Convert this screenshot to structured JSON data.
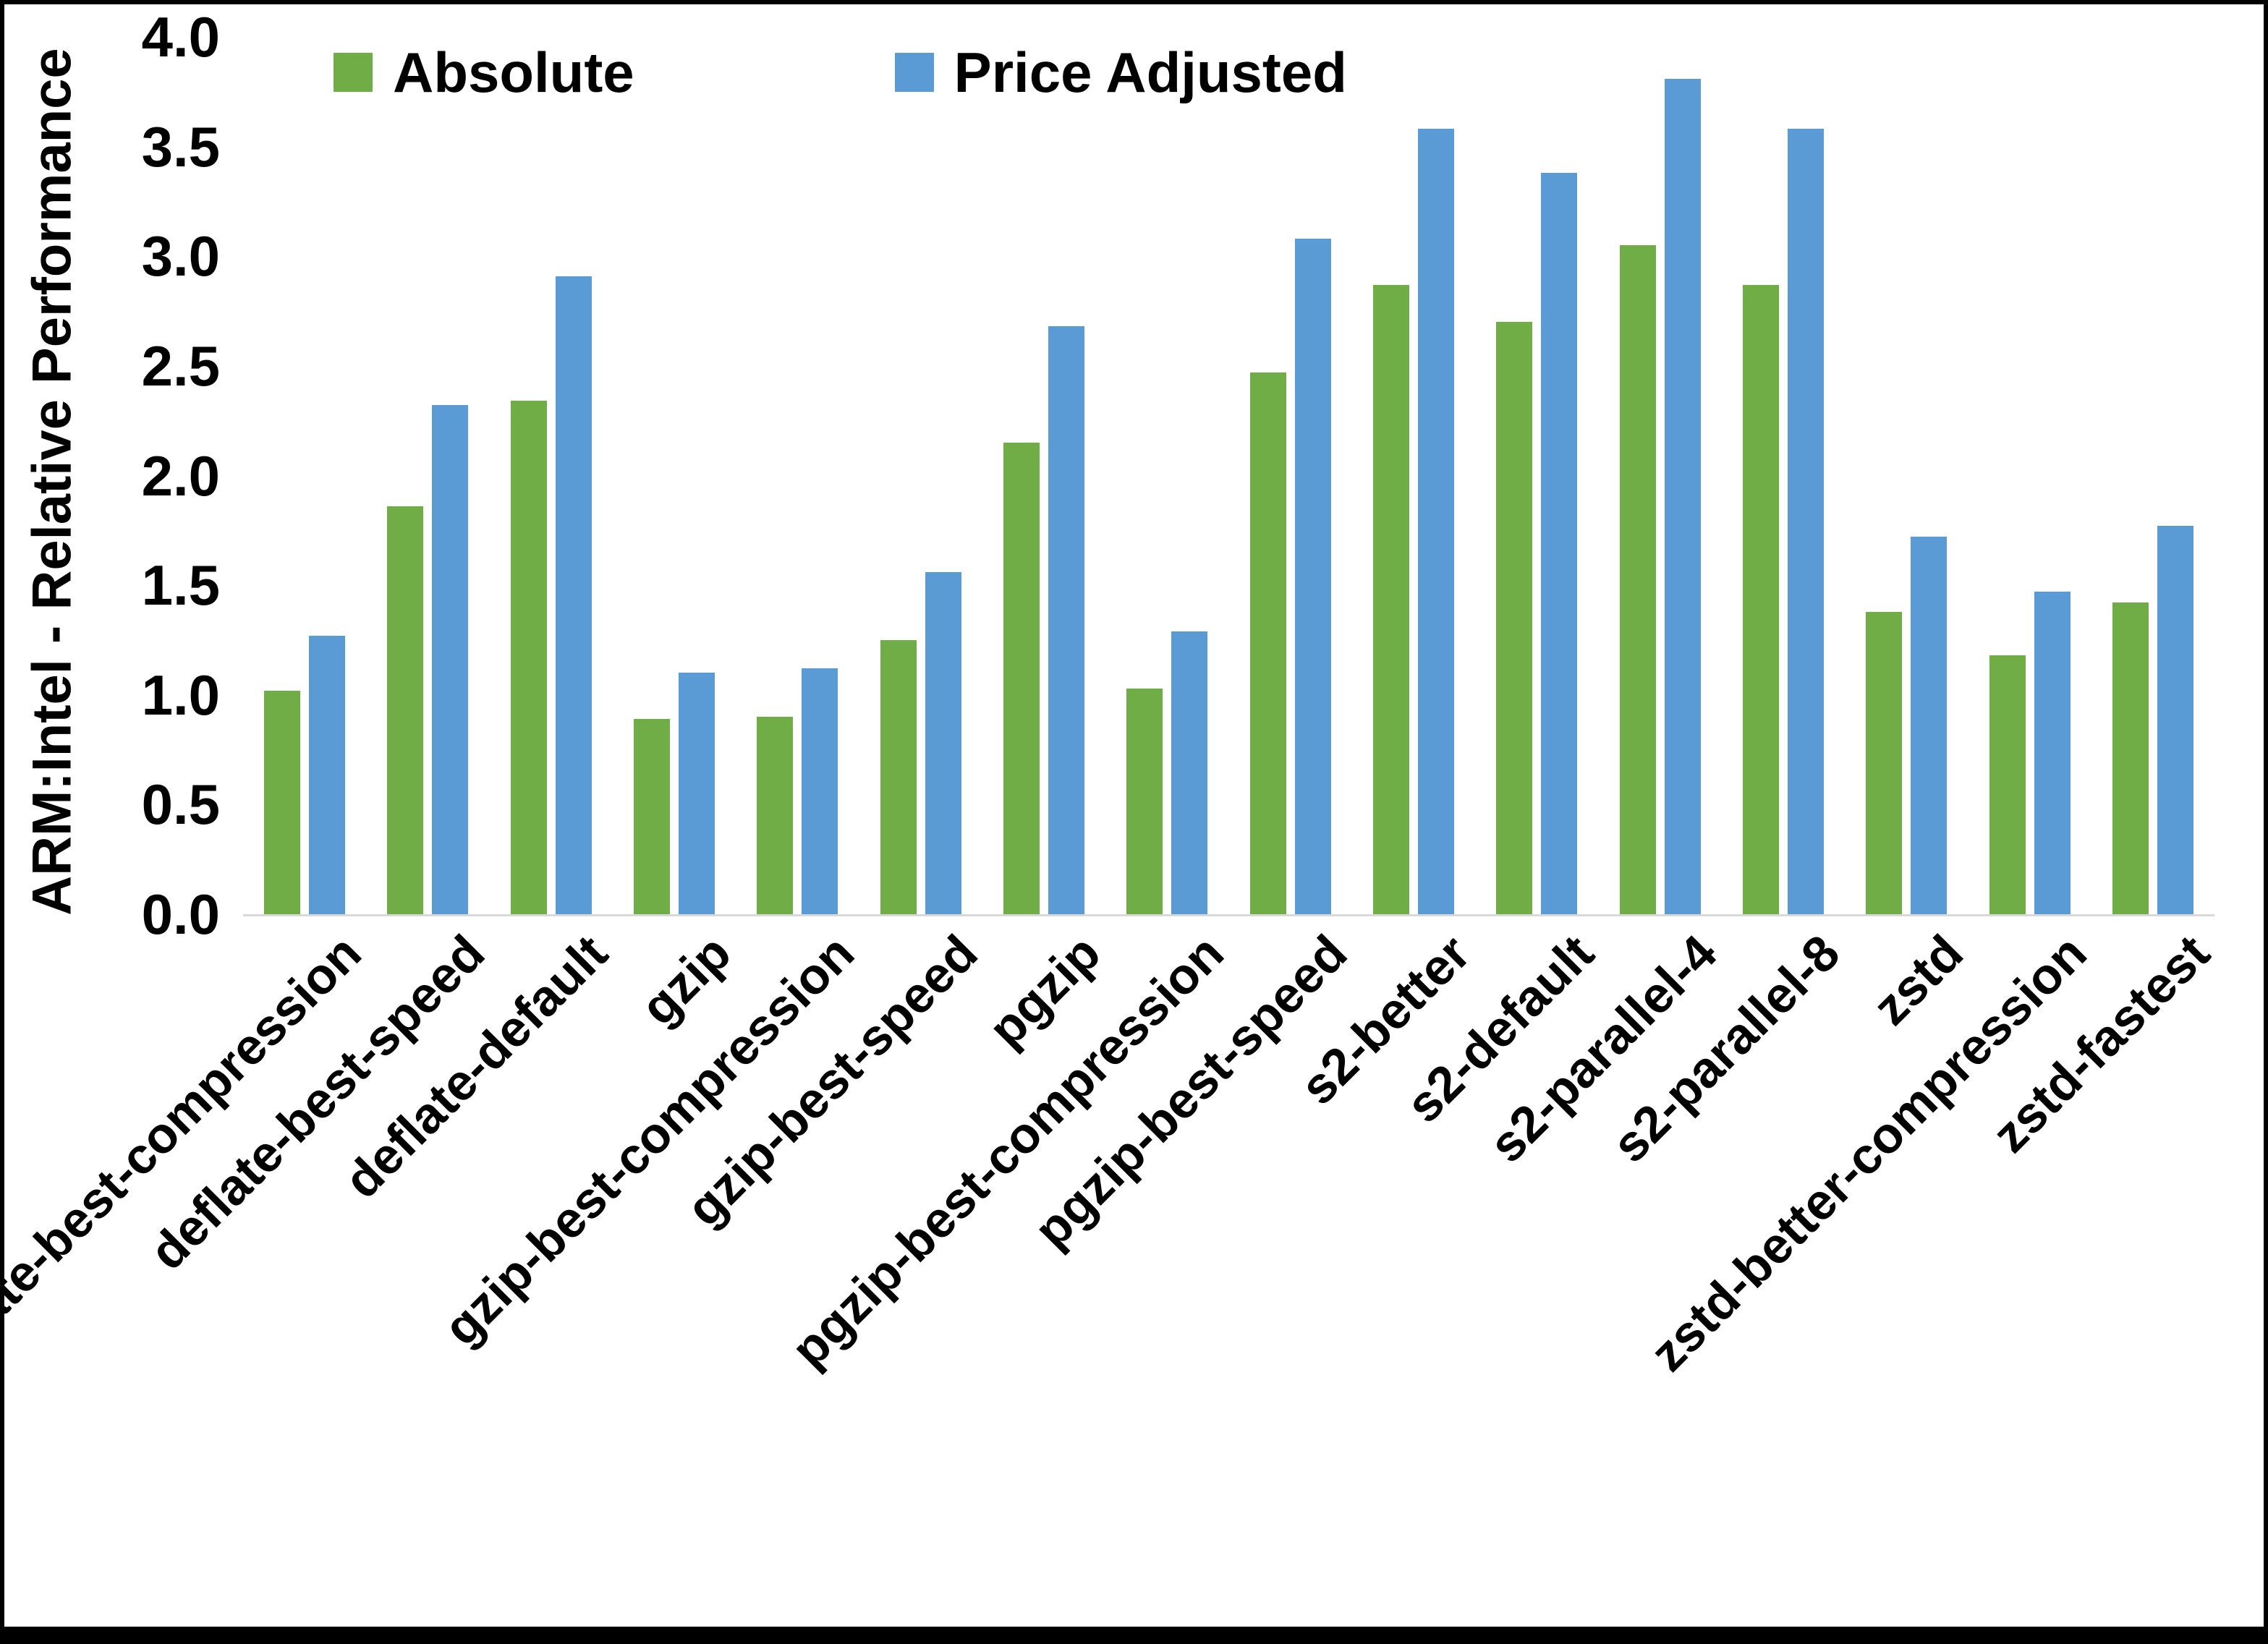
{
  "figure": {
    "background": "#ffffff",
    "border_color": "#000000",
    "axis_line_color": "#d9d9d9"
  },
  "chart_data": {
    "type": "bar",
    "title": "",
    "xlabel": "",
    "ylabel": "ARM:Intel - Relative Performance",
    "ylim": [
      0.0,
      4.0
    ],
    "ytick_labels": [
      "0.0",
      "0.5",
      "1.0",
      "1.5",
      "2.0",
      "2.5",
      "3.0",
      "3.5",
      "4.0"
    ],
    "grid": false,
    "legend_position": "top-inside",
    "categories": [
      "deflate-best-compression",
      "deflate-best-speed",
      "deflate-default",
      "gzip",
      "gzip-best-compression",
      "gzip-best-speed",
      "pgzip",
      "pgzip-best-compression",
      "pgzip-best-speed",
      "s2-better",
      "s2-default",
      "s2-parallel-4",
      "s2-parallel-8",
      "zstd",
      "zstd-better-compression",
      "zstd-fastest"
    ],
    "series": [
      {
        "name": "Absolute",
        "color": "#70AD47",
        "values": [
          1.02,
          1.86,
          2.34,
          0.89,
          0.9,
          1.25,
          2.15,
          1.03,
          2.47,
          2.87,
          2.7,
          3.05,
          2.87,
          1.38,
          1.18,
          1.42
        ]
      },
      {
        "name": "Price Adjusted",
        "color": "#5B9BD5",
        "values": [
          1.27,
          2.32,
          2.91,
          1.1,
          1.12,
          1.56,
          2.68,
          1.29,
          3.08,
          3.58,
          3.38,
          3.81,
          3.58,
          1.72,
          1.47,
          1.77
        ]
      }
    ]
  }
}
